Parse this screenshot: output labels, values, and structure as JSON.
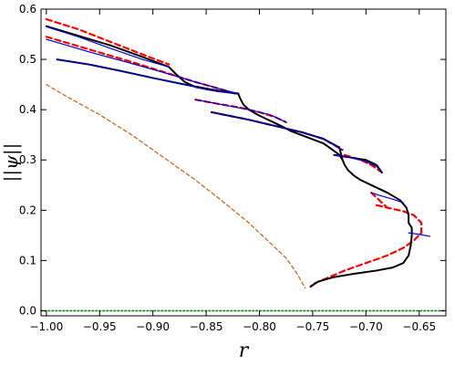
{
  "chart_data": {
    "type": "line",
    "title": "",
    "xlabel": "r",
    "ylabel": "||ψ||",
    "xlim": [
      -1.005,
      -0.625
    ],
    "ylim": [
      -0.01,
      0.6
    ],
    "xticks": [
      -1.0,
      -0.95,
      -0.9,
      -0.85,
      -0.8,
      -0.75,
      -0.7,
      -0.65
    ],
    "xtick_labels": [
      "−1.00",
      "−0.95",
      "−0.90",
      "−0.85",
      "−0.80",
      "−0.75",
      "−0.70",
      "−0.65"
    ],
    "yticks": [
      0.0,
      0.1,
      0.2,
      0.3,
      0.4,
      0.5,
      0.6
    ],
    "ytick_labels": [
      "0.0",
      "0.1",
      "0.2",
      "0.3",
      "0.4",
      "0.5",
      "0.6"
    ],
    "grid": false,
    "legend": "none",
    "series": [
      {
        "style": "dashed-orange",
        "color": "#d2691e",
        "points": [
          [
            -1.0,
            0.45
          ],
          [
            -0.98,
            0.425
          ],
          [
            -0.95,
            0.39
          ],
          [
            -0.92,
            0.35
          ],
          [
            -0.89,
            0.305
          ],
          [
            -0.86,
            0.26
          ],
          [
            -0.83,
            0.21
          ],
          [
            -0.81,
            0.175
          ],
          [
            -0.79,
            0.135
          ],
          [
            -0.775,
            0.105
          ],
          [
            -0.765,
            0.075
          ],
          [
            -0.757,
            0.045
          ]
        ]
      },
      {
        "style": "dotted-green",
        "color": "#228b22",
        "points": [
          [
            -1.005,
            0.0
          ],
          [
            -0.625,
            0.0
          ]
        ]
      },
      {
        "style": "dashed-red",
        "color": "#ff0000",
        "segments": [
          [
            [
              -1.0,
              0.58
            ],
            [
              -0.97,
              0.56
            ],
            [
              -0.94,
              0.535
            ],
            [
              -0.91,
              0.51
            ],
            [
              -0.885,
              0.49
            ]
          ],
          [
            [
              -1.0,
              0.545
            ],
            [
              -0.96,
              0.52
            ],
            [
              -0.92,
              0.495
            ],
            [
              -0.89,
              0.475
            ],
            [
              -0.86,
              0.455
            ],
            [
              -0.835,
              0.44
            ],
            [
              -0.82,
              0.43
            ]
          ],
          [
            [
              -0.86,
              0.42
            ],
            [
              -0.84,
              0.412
            ],
            [
              -0.82,
              0.405
            ],
            [
              -0.8,
              0.395
            ],
            [
              -0.785,
              0.385
            ],
            [
              -0.775,
              0.375
            ]
          ],
          [
            [
              -0.845,
              0.395
            ],
            [
              -0.81,
              0.38
            ],
            [
              -0.78,
              0.365
            ],
            [
              -0.76,
              0.355
            ],
            [
              -0.74,
              0.342
            ],
            [
              -0.722,
              0.32
            ]
          ],
          [
            [
              -0.72,
              0.31
            ],
            [
              -0.705,
              0.3
            ],
            [
              -0.695,
              0.29
            ],
            [
              -0.685,
              0.275
            ]
          ],
          [
            [
              -0.695,
              0.235
            ],
            [
              -0.685,
              0.215
            ],
            [
              -0.68,
              0.205
            ]
          ],
          [
            [
              -0.69,
              0.21
            ],
            [
              -0.68,
              0.205
            ],
            [
              -0.665,
              0.198
            ],
            [
              -0.655,
              0.19
            ],
            [
              -0.648,
              0.175
            ],
            [
              -0.648,
              0.155
            ],
            [
              -0.655,
              0.14
            ],
            [
              -0.665,
              0.125
            ],
            [
              -0.68,
              0.11
            ],
            [
              -0.7,
              0.095
            ],
            [
              -0.72,
              0.08
            ],
            [
              -0.74,
              0.062
            ],
            [
              -0.75,
              0.053
            ],
            [
              -0.752,
              0.048
            ]
          ]
        ]
      },
      {
        "style": "solid-black",
        "color": "#000000",
        "points": [
          [
            -0.752,
            0.048
          ],
          [
            -0.745,
            0.058
          ],
          [
            -0.73,
            0.067
          ],
          [
            -0.71,
            0.074
          ],
          [
            -0.69,
            0.08
          ],
          [
            -0.675,
            0.086
          ],
          [
            -0.665,
            0.095
          ],
          [
            -0.66,
            0.11
          ],
          [
            -0.658,
            0.13
          ],
          [
            -0.657,
            0.15
          ],
          [
            -0.657,
            0.165
          ],
          [
            -0.66,
            0.175
          ],
          [
            -0.66,
            0.19
          ],
          [
            -0.662,
            0.205
          ],
          [
            -0.668,
            0.22
          ],
          [
            -0.68,
            0.235
          ],
          [
            -0.695,
            0.25
          ],
          [
            -0.705,
            0.26
          ],
          [
            -0.712,
            0.27
          ],
          [
            -0.717,
            0.28
          ],
          [
            -0.72,
            0.29
          ],
          [
            -0.722,
            0.3
          ],
          [
            -0.725,
            0.31
          ],
          [
            -0.73,
            0.318
          ],
          [
            -0.74,
            0.333
          ],
          [
            -0.755,
            0.345
          ],
          [
            -0.77,
            0.357
          ],
          [
            -0.78,
            0.368
          ],
          [
            -0.79,
            0.378
          ],
          [
            -0.8,
            0.388
          ],
          [
            -0.81,
            0.4
          ],
          [
            -0.815,
            0.41
          ],
          [
            -0.818,
            0.422
          ],
          [
            -0.82,
            0.432
          ],
          [
            -0.84,
            0.437
          ],
          [
            -0.86,
            0.445
          ],
          [
            -0.87,
            0.455
          ],
          [
            -0.878,
            0.47
          ],
          [
            -0.885,
            0.485
          ],
          [
            -0.91,
            0.505
          ],
          [
            -0.94,
            0.528
          ],
          [
            -0.97,
            0.547
          ],
          [
            -1.0,
            0.566
          ]
        ]
      },
      {
        "style": "solid-black-branch",
        "color": "#000000",
        "points": [
          [
            -0.99,
            0.5
          ],
          [
            -0.96,
            0.49
          ],
          [
            -0.93,
            0.477
          ],
          [
            -0.9,
            0.463
          ],
          [
            -0.87,
            0.45
          ],
          [
            -0.845,
            0.44
          ],
          [
            -0.82,
            0.432
          ]
        ]
      },
      {
        "style": "solid-black-branch",
        "color": "#000000",
        "points": [
          [
            -0.845,
            0.395
          ],
          [
            -0.81,
            0.38
          ],
          [
            -0.78,
            0.365
          ],
          [
            -0.76,
            0.355
          ],
          [
            -0.74,
            0.342
          ],
          [
            -0.725,
            0.325
          ],
          [
            -0.722,
            0.3
          ]
        ]
      },
      {
        "style": "solid-black-branch",
        "color": "#000000",
        "points": [
          [
            -0.73,
            0.31
          ],
          [
            -0.715,
            0.305
          ],
          [
            -0.7,
            0.3
          ],
          [
            -0.69,
            0.29
          ],
          [
            -0.685,
            0.275
          ]
        ]
      },
      {
        "style": "solid-blue",
        "color": "#0000cd",
        "segments": [
          [
            [
              -1.0,
              0.565
            ],
            [
              -0.97,
              0.545
            ],
            [
              -0.94,
              0.522
            ],
            [
              -0.91,
              0.5
            ],
            [
              -0.885,
              0.485
            ]
          ],
          [
            [
              -1.0,
              0.54
            ],
            [
              -0.96,
              0.515
            ],
            [
              -0.92,
              0.492
            ],
            [
              -0.89,
              0.474
            ],
            [
              -0.86,
              0.455
            ],
            [
              -0.84,
              0.443
            ],
            [
              -0.82,
              0.432
            ]
          ],
          [
            [
              -0.99,
              0.5
            ],
            [
              -0.96,
              0.49
            ],
            [
              -0.93,
              0.477
            ],
            [
              -0.9,
              0.463
            ],
            [
              -0.87,
              0.45
            ],
            [
              -0.85,
              0.44
            ],
            [
              -0.82,
              0.432
            ]
          ],
          [
            [
              -0.86,
              0.42
            ],
            [
              -0.835,
              0.41
            ],
            [
              -0.81,
              0.4
            ],
            [
              -0.79,
              0.39
            ],
            [
              -0.775,
              0.375
            ]
          ],
          [
            [
              -0.845,
              0.395
            ],
            [
              -0.81,
              0.38
            ],
            [
              -0.78,
              0.365
            ],
            [
              -0.76,
              0.355
            ],
            [
              -0.74,
              0.342
            ],
            [
              -0.722,
              0.32
            ]
          ],
          [
            [
              -0.73,
              0.31
            ],
            [
              -0.715,
              0.305
            ],
            [
              -0.7,
              0.297
            ],
            [
              -0.69,
              0.287
            ],
            [
              -0.685,
              0.275
            ]
          ],
          [
            [
              -0.695,
              0.235
            ],
            [
              -0.688,
              0.23
            ],
            [
              -0.675,
              0.222
            ],
            [
              -0.665,
              0.215
            ]
          ],
          [
            [
              -0.66,
              0.155
            ],
            [
              -0.65,
              0.152
            ],
            [
              -0.64,
              0.148
            ]
          ]
        ]
      }
    ]
  }
}
